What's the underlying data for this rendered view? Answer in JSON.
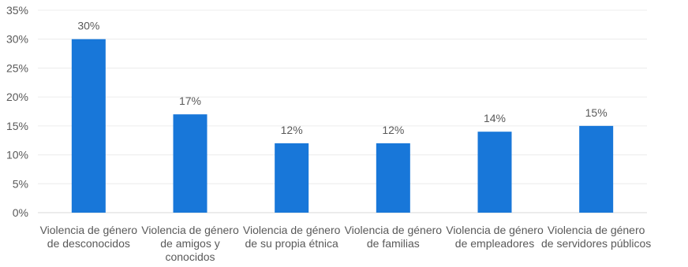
{
  "chart_data": {
    "type": "bar",
    "title": "",
    "xlabel": "",
    "ylabel": "",
    "ylim": [
      0,
      35
    ],
    "yticks": [
      "0%",
      "5%",
      "10%",
      "15%",
      "20%",
      "25%",
      "30%",
      "35%"
    ],
    "ytick_values": [
      0,
      5,
      10,
      15,
      20,
      25,
      30,
      35
    ],
    "grid": true,
    "legend": "none",
    "bar_color": "#1877d9",
    "categories": [
      [
        "Violencia de género",
        "de desconocidos"
      ],
      [
        "Violencia de género",
        "de amigos y",
        "conocidos"
      ],
      [
        "Violencia de género",
        "de su propia étnica"
      ],
      [
        "Violencia de género",
        "de familias"
      ],
      [
        "Violencia de género",
        "de empleadores"
      ],
      [
        "Violencia de género",
        "de servidores públicos"
      ]
    ],
    "values": [
      30,
      17,
      12,
      12,
      14,
      15
    ],
    "data_labels": [
      "30%",
      "17%",
      "12%",
      "12%",
      "14%",
      "15%"
    ]
  }
}
